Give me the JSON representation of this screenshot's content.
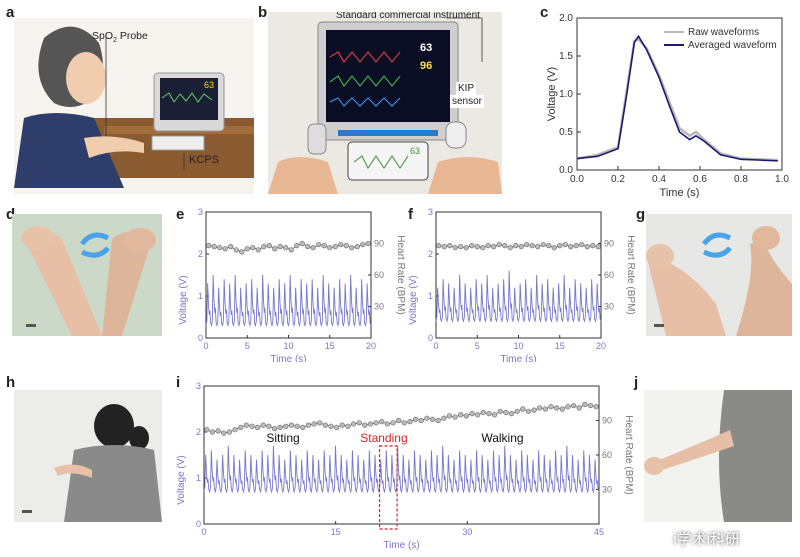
{
  "panel_labels": [
    "a",
    "b",
    "c",
    "d",
    "e",
    "f",
    "g",
    "h",
    "i",
    "j"
  ],
  "panel_a": {
    "probe_label_prefix": "SpO",
    "probe_label_sub": "2",
    "probe_label_suffix": " Probe",
    "device_label": "KCPS",
    "monitor_reading": "63"
  },
  "panel_b": {
    "instrument_label": "Standard commercial instrument",
    "sensor_label_line1": "KIP",
    "sensor_label_line2": "sensor",
    "monitor_values": [
      "63",
      "96"
    ],
    "phone_reading": "63"
  },
  "watermark": "i学术i科研",
  "colors": {
    "trace": "#7777cc",
    "averaged": "#1a1a70",
    "raw": "#b8b8b8",
    "hr_marker": "#999999",
    "highlight": "#dd2222"
  },
  "chart_data": [
    {
      "id": "c",
      "type": "line",
      "xlabel": "Time (s)",
      "ylabel": "Voltage (V)",
      "xlim": [
        0.0,
        1.0
      ],
      "ylim": [
        0.0,
        2.0
      ],
      "xticks": [
        "0.0",
        "0.2",
        "0.4",
        "0.6",
        "0.8",
        "1.0"
      ],
      "yticks": [
        "0.0",
        "0.5",
        "1.0",
        "1.5",
        "2.0"
      ],
      "legend": "top-right",
      "series": [
        {
          "name": "Raw waveforms",
          "x": [
            0.0,
            0.1,
            0.2,
            0.24,
            0.28,
            0.3,
            0.34,
            0.4,
            0.45,
            0.5,
            0.55,
            0.58,
            0.62,
            0.7,
            0.8,
            0.9,
            0.98
          ],
          "y": [
            0.15,
            0.2,
            0.3,
            1.0,
            1.7,
            1.72,
            1.6,
            1.25,
            0.9,
            0.55,
            0.45,
            0.5,
            0.4,
            0.22,
            0.15,
            0.14,
            0.13
          ]
        },
        {
          "name": "Averaged waveform",
          "x": [
            0.0,
            0.1,
            0.2,
            0.24,
            0.28,
            0.3,
            0.34,
            0.4,
            0.45,
            0.5,
            0.55,
            0.58,
            0.62,
            0.7,
            0.8,
            0.9,
            0.98
          ],
          "y": [
            0.15,
            0.18,
            0.28,
            0.95,
            1.68,
            1.76,
            1.58,
            1.22,
            0.85,
            0.5,
            0.4,
            0.45,
            0.38,
            0.2,
            0.14,
            0.13,
            0.12
          ]
        }
      ]
    },
    {
      "id": "e",
      "type": "line",
      "xlabel": "Time (s)",
      "ylabel": "Voltage (V)",
      "ylabel_right": "Heart Rate (BPM)",
      "xlim": [
        0,
        20
      ],
      "ylim": [
        0,
        3
      ],
      "ylim_right": [
        0,
        120
      ],
      "xticks": [
        "0",
        "5",
        "10",
        "15",
        "20"
      ],
      "yticks": [
        "0",
        "1",
        "2",
        "3"
      ],
      "yticks_right": [
        "30",
        "60",
        "90"
      ],
      "beats": 30,
      "hr_bpm": [
        88,
        87,
        86,
        85,
        87,
        84,
        82,
        85,
        86,
        84,
        87,
        88,
        85,
        87,
        86,
        84,
        88,
        90,
        87,
        86,
        89,
        88,
        86,
        87,
        89,
        88,
        86,
        87,
        89,
        90
      ],
      "voltage_baseline": 0.3,
      "voltage_peak": [
        1.3,
        1.5,
        1.2,
        1.4,
        1.3,
        1.5,
        1.2,
        1.3,
        1.4,
        1.2,
        1.5,
        1.3,
        1.2,
        1.4,
        1.3,
        1.5,
        1.2,
        1.4,
        1.3,
        1.4,
        1.2,
        1.5,
        1.3,
        1.2,
        1.4,
        1.3,
        1.5,
        1.2,
        1.4,
        1.3
      ]
    },
    {
      "id": "f",
      "type": "line",
      "xlabel": "Time (s)",
      "ylabel": "Voltage (V)",
      "ylabel_right": "Heart Rate (BPM)",
      "xlim": [
        0,
        20
      ],
      "ylim": [
        0,
        3
      ],
      "ylim_right": [
        0,
        120
      ],
      "xticks": [
        "0",
        "5",
        "10",
        "15",
        "20"
      ],
      "yticks": [
        "0",
        "1",
        "2",
        "3"
      ],
      "yticks_right": [
        "30",
        "60",
        "90"
      ],
      "beats": 30,
      "hr_bpm": [
        88,
        87,
        88,
        86,
        87,
        86,
        88,
        87,
        86,
        88,
        87,
        89,
        88,
        86,
        88,
        87,
        89,
        88,
        87,
        89,
        88,
        86,
        88,
        89,
        87,
        88,
        89,
        87,
        88,
        87
      ],
      "voltage_baseline": 0.4,
      "voltage_peak": [
        1.2,
        1.4,
        1.3,
        1.2,
        1.5,
        1.3,
        1.2,
        1.4,
        1.3,
        1.5,
        1.2,
        1.3,
        1.4,
        1.6,
        1.2,
        1.3,
        1.4,
        1.2,
        1.5,
        1.3,
        1.4,
        1.2,
        1.3,
        1.5,
        1.2,
        1.4,
        1.3,
        1.2,
        1.4,
        1.3
      ]
    },
    {
      "id": "i",
      "type": "line",
      "xlabel": "Time (s)",
      "ylabel": "Voltage (V)",
      "ylabel_right": "Heart Rate (BPM)",
      "xlim": [
        0,
        45
      ],
      "ylim": [
        0,
        3
      ],
      "ylim_right": [
        0,
        120
      ],
      "xticks": [
        "0",
        "15",
        "30",
        "45"
      ],
      "yticks": [
        "0",
        "1",
        "2",
        "3"
      ],
      "yticks_right": [
        "30",
        "60",
        "90"
      ],
      "beats": 70,
      "hr_bpm": [
        82,
        80,
        81,
        79,
        80,
        82,
        84,
        86,
        85,
        84,
        86,
        85,
        83,
        84,
        85,
        86,
        85,
        84,
        86,
        87,
        88,
        86,
        85,
        84,
        86,
        85,
        87,
        88,
        86,
        87,
        88,
        89,
        87,
        88,
        90,
        88,
        89,
        91,
        90,
        92,
        91,
        90,
        92,
        94,
        93,
        95,
        94,
        96,
        95,
        97,
        96,
        95,
        98,
        97,
        96,
        98,
        100,
        98,
        99,
        101,
        100,
        102,
        101,
        100,
        102,
        103,
        101,
        104,
        103,
        102
      ],
      "voltage_baseline": 0.7,
      "voltage_peak": [
        1.5,
        1.6,
        1.4,
        1.5,
        1.7,
        1.5,
        1.4,
        1.6,
        1.5,
        1.4,
        1.6,
        1.5,
        1.7,
        1.5,
        1.4,
        1.6,
        1.5,
        1.4,
        1.6,
        1.5,
        1.4,
        1.6,
        1.5,
        1.7,
        1.5,
        1.4,
        1.6,
        1.5,
        1.4,
        1.6,
        1.5,
        1.4,
        1.6,
        1.5,
        1.7,
        1.5,
        1.4,
        1.6,
        1.5,
        1.4,
        1.6,
        1.5,
        1.7,
        1.5,
        1.4,
        1.6,
        1.5,
        1.4,
        1.6,
        1.5,
        1.4,
        1.6,
        1.5,
        1.7,
        1.5,
        1.4,
        1.6,
        1.5,
        1.4,
        1.6,
        1.5,
        1.4,
        1.6,
        1.5,
        1.7,
        1.5,
        1.4,
        1.6,
        1.5,
        1.4
      ],
      "annotations": [
        {
          "text": "Sitting",
          "x": 9
        },
        {
          "text": "Standing",
          "x": 20.5,
          "highlight_from": 20.0,
          "highlight_to": 22.0
        },
        {
          "text": "Walking",
          "x": 34
        }
      ]
    }
  ]
}
